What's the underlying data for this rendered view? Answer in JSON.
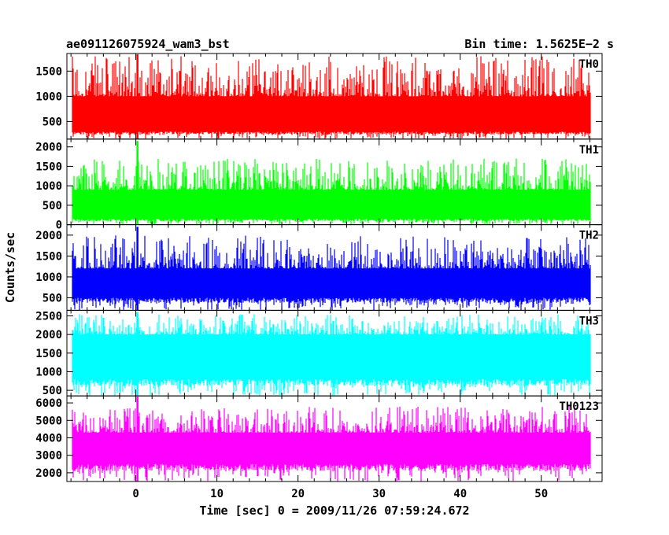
{
  "header": {
    "left_title": "ae091126075924_wam3_bst",
    "right_title": "Bin time: 1.5625E−2 s"
  },
  "chart_data": {
    "type": "line",
    "title": "ae091126075924_wam3_bst",
    "xlabel": "Time [sec] 0 = 2009/11/26 07:59:24.672",
    "ylabel": "Counts/sec",
    "bin_time_s": 0.015625,
    "xlim": [
      -8.5,
      57.5
    ],
    "x_ticks": [
      0,
      10,
      20,
      30,
      40,
      50
    ],
    "x_range_data": [
      -7.8,
      56.0
    ],
    "grid": false,
    "panels": [
      {
        "label": "TH0",
        "color": "#ff0000",
        "ylim": [
          150,
          1850
        ],
        "y_ticks": [
          500,
          1000,
          1500
        ],
        "baseline": 150,
        "typical_range": [
          300,
          1000
        ],
        "peak_max": 1800,
        "burst_time": 0.2,
        "burst_peak": 1850
      },
      {
        "label": "TH1",
        "color": "#00ff00",
        "ylim": [
          0,
          2200
        ],
        "y_ticks": [
          0,
          500,
          1000,
          1500,
          2000
        ],
        "baseline": 0,
        "typical_range": [
          150,
          900
        ],
        "peak_max": 1700,
        "burst_time": 0.2,
        "burst_peak": 2150
      },
      {
        "label": "TH2",
        "color": "#0000ff",
        "ylim": [
          200,
          2250
        ],
        "y_ticks": [
          500,
          1000,
          1500,
          2000
        ],
        "baseline": 200,
        "typical_range": [
          500,
          1200
        ],
        "peak_max": 2000,
        "burst_time": 0.2,
        "burst_peak": 2200
      },
      {
        "label": "TH3",
        "color": "#00ffff",
        "ylim": [
          350,
          2650
        ],
        "y_ticks": [
          500,
          1000,
          1500,
          2000,
          2500
        ],
        "baseline": 350,
        "typical_range": [
          800,
          2000
        ],
        "peak_max": 2550,
        "burst_time": 0.2,
        "burst_peak": 2600
      },
      {
        "label": "TH0123",
        "color": "#ff00ff",
        "ylim": [
          1500,
          6400
        ],
        "y_ticks": [
          2000,
          3000,
          4000,
          5000,
          6000
        ],
        "baseline": 1500,
        "typical_range": [
          2500,
          4300
        ],
        "peak_max": 5800,
        "burst_time": 0.2,
        "burst_peak": 6350
      }
    ]
  }
}
